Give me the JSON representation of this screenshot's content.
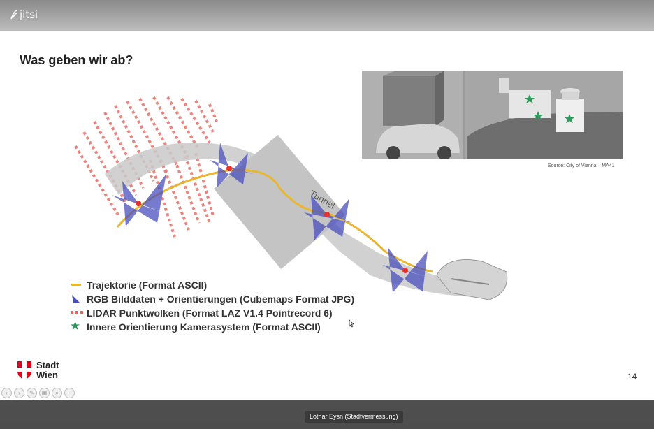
{
  "app": {
    "name": "jitsi"
  },
  "slide": {
    "title": "Was geben wir ab?",
    "photo_source": "Source: City of Vienna – MA41",
    "diagram_label": "Tunnel",
    "legend": [
      {
        "symbol": "line",
        "label": "Trajektorie (Format ASCII)"
      },
      {
        "symbol": "triangle",
        "label": "RGB Bilddaten + Orientierungen (Cubemaps Format JPG)"
      },
      {
        "symbol": "dots",
        "label": "LIDAR Punktwolken (Format LAZ V1.4 Pointrecord 6)"
      },
      {
        "symbol": "star",
        "label": "Innere Orientierung Kamerasystem (Format ASCII)"
      }
    ],
    "logo": {
      "line1": "Stadt",
      "line2": "Wien"
    },
    "page_number": "14"
  },
  "speaker": {
    "name": "Lothar Eysn (Stadtvermessung)"
  },
  "colors": {
    "trajectory": "#e8b630",
    "lidar": "#e8675e",
    "camera": "#4a4fbd",
    "star": "#2d9a5a",
    "road": "#c9c9c9"
  }
}
